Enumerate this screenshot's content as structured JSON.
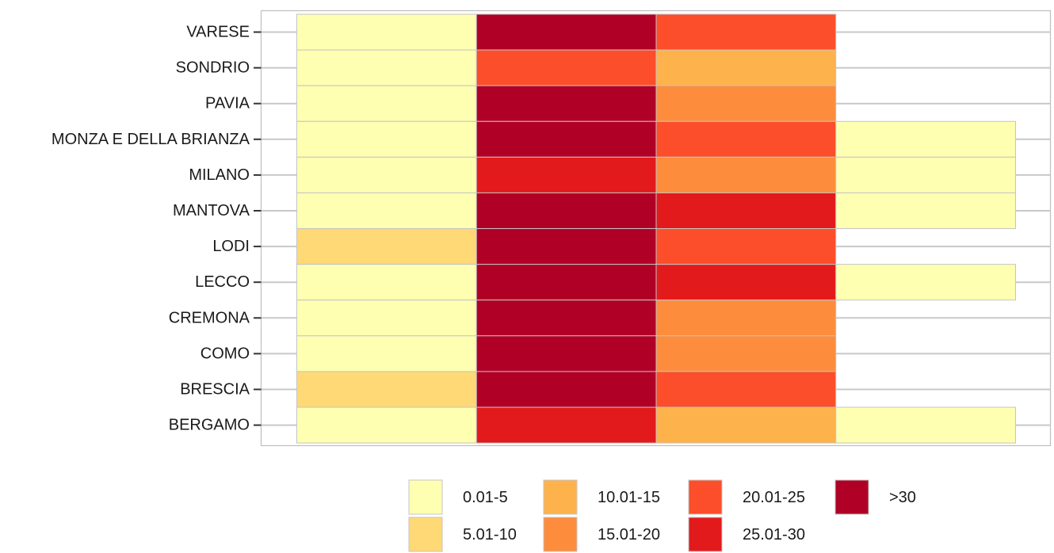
{
  "chart_data": {
    "type": "heatmap",
    "title": "",
    "xlabel": "",
    "ylabel": "",
    "grid": true,
    "legend_position": "bottom",
    "bins": [
      {
        "label": "0.01-5",
        "color": "#FFFFB2"
      },
      {
        "label": "5.01-10",
        "color": "#FED976"
      },
      {
        "label": "10.01-15",
        "color": "#FEB24C"
      },
      {
        "label": "15.01-20",
        "color": "#FD8D3C"
      },
      {
        "label": "20.01-25",
        "color": "#FC4E2A"
      },
      {
        "label": "25.01-30",
        "color": "#E31A1C"
      },
      {
        "label": ">30",
        "color": "#B10026"
      }
    ],
    "columns": 4,
    "rows": [
      {
        "name": "VARESE",
        "cells": [
          "0.01-5",
          ">30",
          "20.01-25",
          null
        ]
      },
      {
        "name": "SONDRIO",
        "cells": [
          "0.01-5",
          "20.01-25",
          "10.01-15",
          null
        ]
      },
      {
        "name": "PAVIA",
        "cells": [
          "0.01-5",
          ">30",
          "15.01-20",
          null
        ]
      },
      {
        "name": "MONZA E DELLA BRIANZA",
        "cells": [
          "0.01-5",
          ">30",
          "20.01-25",
          "0.01-5"
        ]
      },
      {
        "name": "MILANO",
        "cells": [
          "0.01-5",
          "25.01-30",
          "15.01-20",
          "0.01-5"
        ]
      },
      {
        "name": "MANTOVA",
        "cells": [
          "0.01-5",
          ">30",
          "25.01-30",
          "0.01-5"
        ]
      },
      {
        "name": "LODI",
        "cells": [
          "5.01-10",
          ">30",
          "20.01-25",
          null
        ]
      },
      {
        "name": "LECCO",
        "cells": [
          "0.01-5",
          ">30",
          "25.01-30",
          "0.01-5"
        ]
      },
      {
        "name": "CREMONA",
        "cells": [
          "0.01-5",
          ">30",
          "15.01-20",
          null
        ]
      },
      {
        "name": "COMO",
        "cells": [
          "0.01-5",
          ">30",
          "15.01-20",
          null
        ]
      },
      {
        "name": "BRESCIA",
        "cells": [
          "5.01-10",
          ">30",
          "20.01-25",
          null
        ]
      },
      {
        "name": "BERGAMO",
        "cells": [
          "0.01-5",
          "25.01-30",
          "10.01-15",
          "0.01-5"
        ]
      }
    ]
  }
}
